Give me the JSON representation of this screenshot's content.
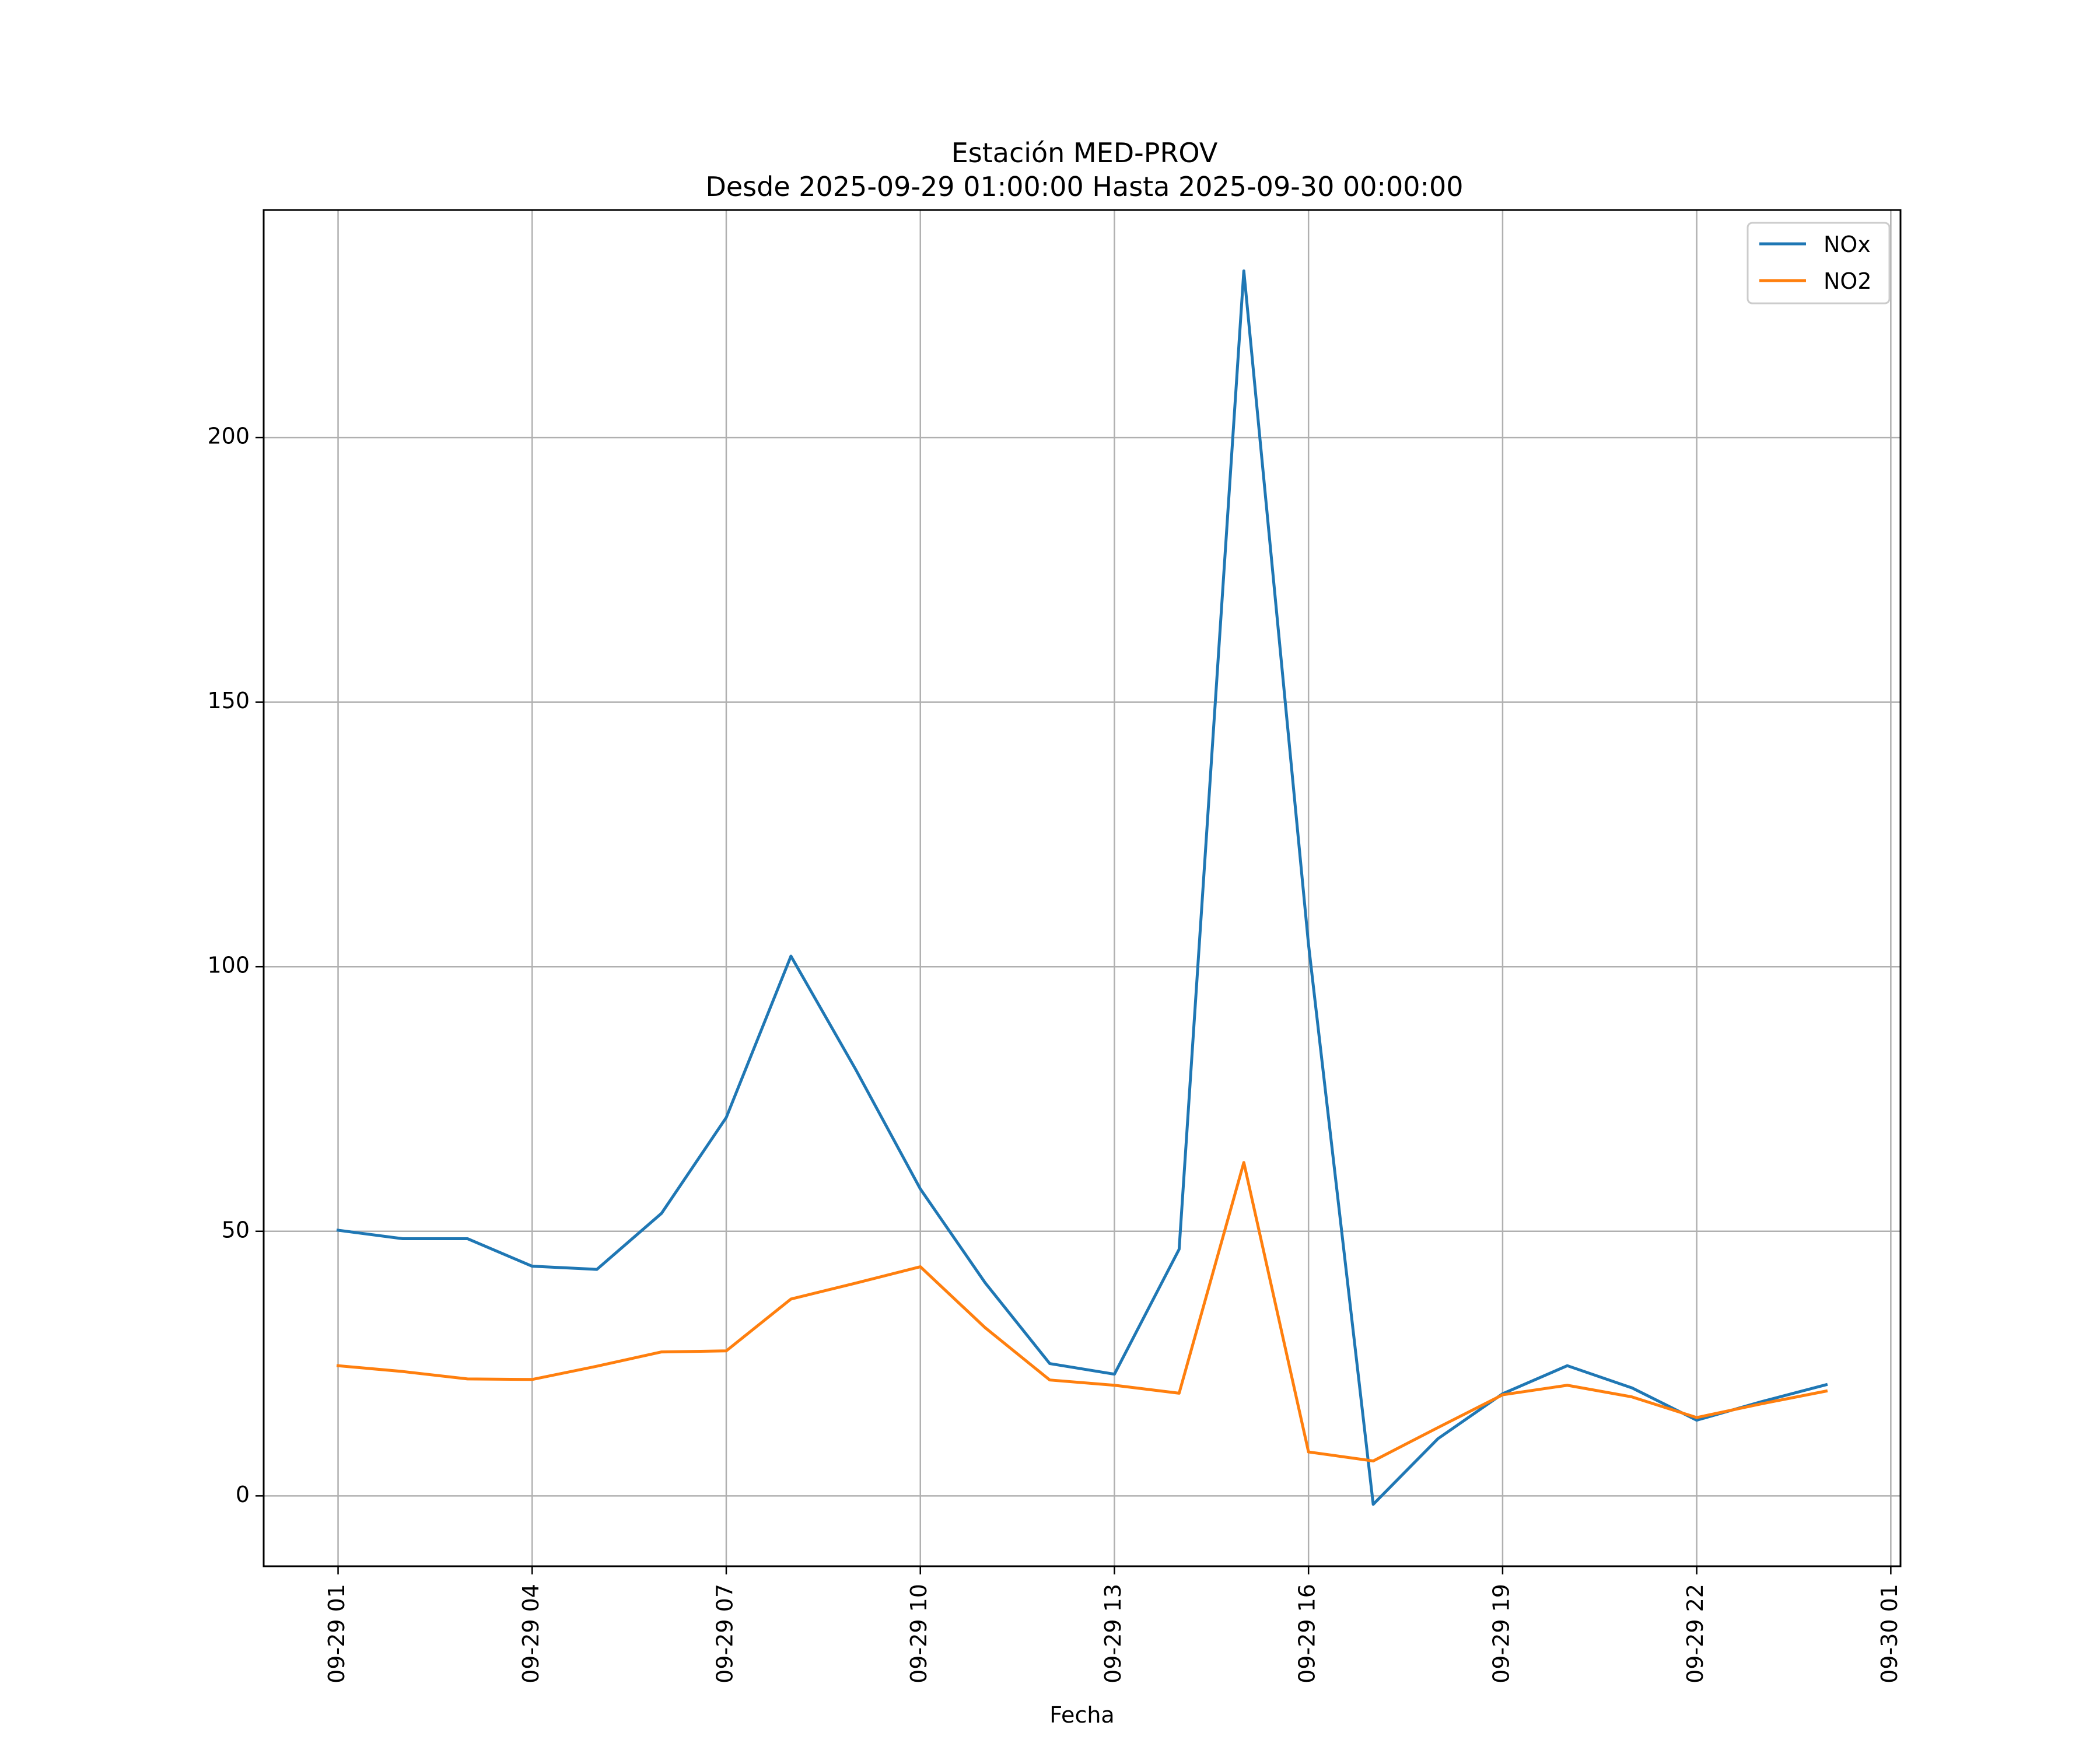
{
  "chart_data": {
    "type": "line",
    "title_line1": "Estación MED-PROV",
    "title_line2": "Desde 2025-09-29 01:00:00 Hasta 2025-09-30 00:00:00",
    "xlabel": "Fecha",
    "ylabel": "",
    "grid": true,
    "legend_position": "top-right",
    "x_hours": [
      1,
      2,
      3,
      4,
      5,
      6,
      7,
      8,
      9,
      10,
      11,
      12,
      13,
      14,
      15,
      16,
      17,
      18,
      19,
      20,
      21,
      22,
      23,
      24
    ],
    "x_range_hours": [
      -0.15,
      25.15
    ],
    "xticks": [
      {
        "hour": 1,
        "label": "09-29 01"
      },
      {
        "hour": 4,
        "label": "09-29 04"
      },
      {
        "hour": 7,
        "label": "09-29 07"
      },
      {
        "hour": 10,
        "label": "09-29 10"
      },
      {
        "hour": 13,
        "label": "09-29 13"
      },
      {
        "hour": 16,
        "label": "09-29 16"
      },
      {
        "hour": 19,
        "label": "09-29 19"
      },
      {
        "hour": 22,
        "label": "09-29 22"
      },
      {
        "hour": 25,
        "label": "09-30 01"
      }
    ],
    "ylim": [
      -13.3,
      243
    ],
    "yticks": [
      0,
      50,
      100,
      150,
      200
    ],
    "series": [
      {
        "name": "NOx",
        "color": "#1f77b4",
        "values": [
          50.2,
          48.6,
          48.6,
          43.4,
          42.8,
          53.4,
          71.5,
          102,
          80.6,
          58,
          40.3,
          25,
          23,
          46.6,
          231.5,
          104.2,
          -1.6,
          10.8,
          19.3,
          24.6,
          20.4,
          14.3,
          17.8,
          21
        ]
      },
      {
        "name": "NO2",
        "color": "#ff7f0e",
        "values": [
          24.6,
          23.5,
          22.1,
          22,
          24.5,
          27.2,
          27.4,
          37.2,
          40.2,
          43.3,
          31.8,
          21.9,
          20.9,
          19.4,
          63,
          8.3,
          6.6,
          12.9,
          19.1,
          20.9,
          18.7,
          14.8,
          17.4,
          19.8
        ]
      }
    ]
  }
}
